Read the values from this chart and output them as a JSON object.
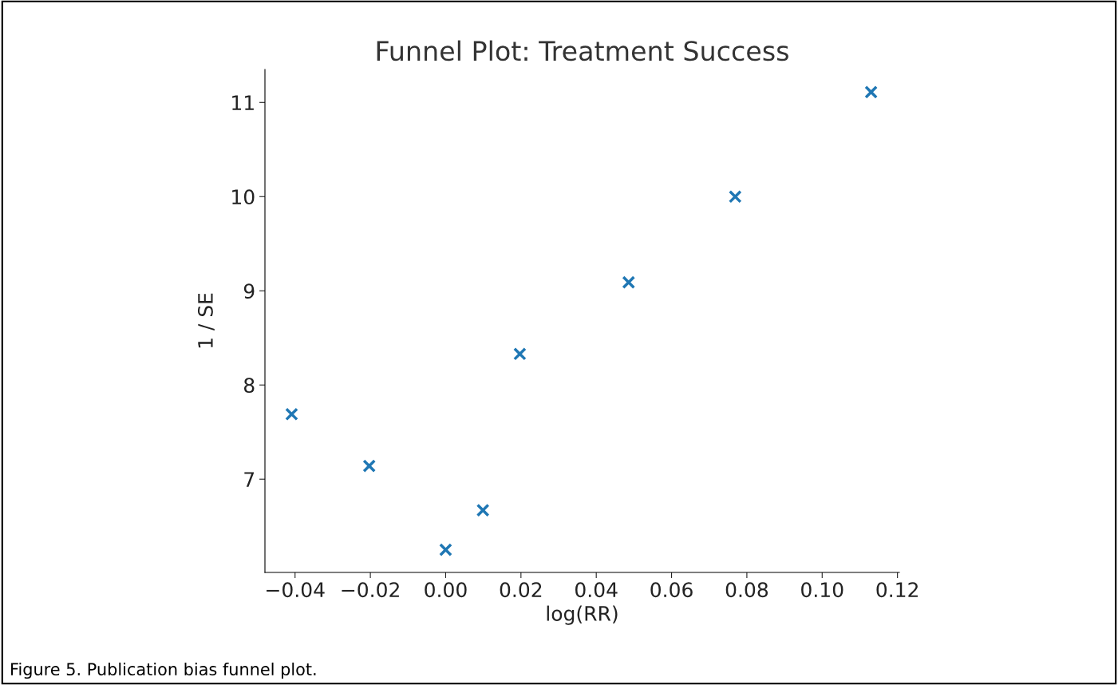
{
  "chart_data": {
    "type": "scatter",
    "title": "Funnel Plot: Treatment Success",
    "xlabel": "log(RR)",
    "ylabel": "1 / SE",
    "x": [
      -0.0409,
      -0.0203,
      0.0,
      0.0099,
      0.0197,
      0.0486,
      0.0769,
      0.113
    ],
    "series": [
      {
        "color": "#1f77b4",
        "values": [
          7.69,
          7.14,
          6.25,
          6.67,
          8.33,
          9.09,
          10.0,
          11.11
        ]
      }
    ],
    "marker": "cross",
    "grid": false,
    "legend": false,
    "xlim": [
      -0.048,
      0.1205
    ],
    "ylim": [
      6.01,
      11.35
    ],
    "xticks": [
      {
        "value": -0.04,
        "label": "−0.04"
      },
      {
        "value": -0.02,
        "label": "−0.02"
      },
      {
        "value": 0.0,
        "label": "0.00"
      },
      {
        "value": 0.02,
        "label": "0.02"
      },
      {
        "value": 0.04,
        "label": "0.04"
      },
      {
        "value": 0.06,
        "label": "0.06"
      },
      {
        "value": 0.08,
        "label": "0.08"
      },
      {
        "value": 0.1,
        "label": "0.10"
      },
      {
        "value": 0.12,
        "label": "0.12"
      }
    ],
    "yticks": [
      7,
      8,
      9,
      10,
      11
    ],
    "annotations": [
      "Figure 5. Publication bias funnel plot."
    ]
  }
}
